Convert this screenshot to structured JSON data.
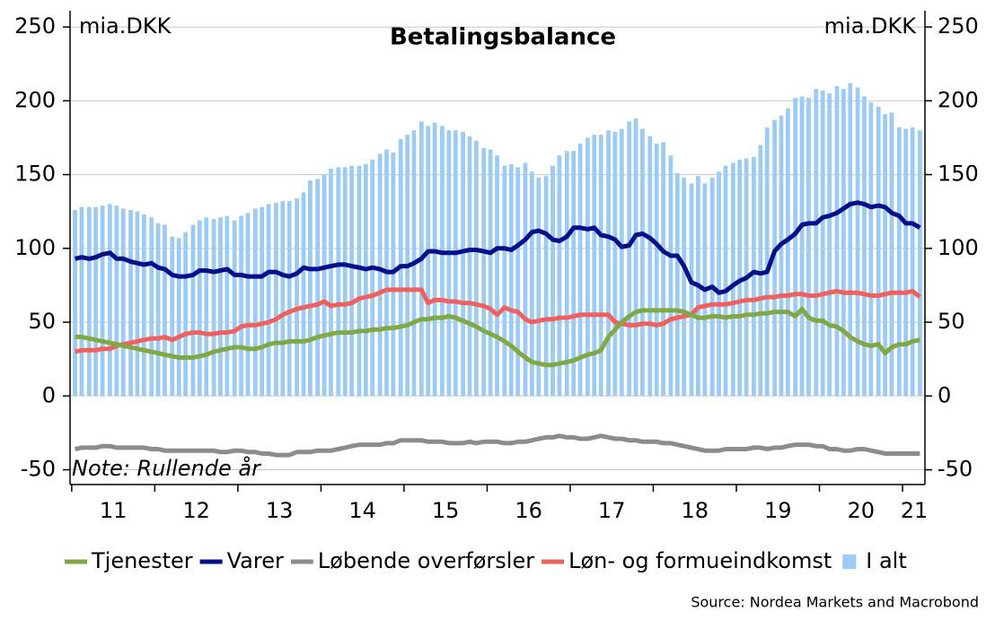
{
  "chart_data": {
    "type": "combo",
    "title": "Betalingsbalance",
    "ylabel": "mia.DKK",
    "y2label": "mia.DKK",
    "annotation": "Note:  Rullende år",
    "source": "Source: Nordea Markets and Macrobond",
    "xlim": [
      2010.98,
      2021.27
    ],
    "xticks": [
      {
        "value": 2011.5,
        "label": "11"
      },
      {
        "value": 2012.5,
        "label": "12"
      },
      {
        "value": 2013.5,
        "label": "13"
      },
      {
        "value": 2014.5,
        "label": "14"
      },
      {
        "value": 2015.5,
        "label": "15"
      },
      {
        "value": 2016.5,
        "label": "16"
      },
      {
        "value": 2017.5,
        "label": "17"
      },
      {
        "value": 2018.5,
        "label": "18"
      },
      {
        "value": 2019.5,
        "label": "19"
      },
      {
        "value": 2020.5,
        "label": "20"
      },
      {
        "value": 2021.14,
        "label": "21"
      }
    ],
    "xminorticks": [
      2011,
      2012,
      2013,
      2014,
      2015,
      2016,
      2017,
      2018,
      2019,
      2020,
      2021
    ],
    "ylim": [
      -60,
      261
    ],
    "yticks": [
      -50,
      0,
      50,
      100,
      150,
      200,
      250
    ],
    "grid": true,
    "x": [
      2011.04,
      2011.12,
      2011.21,
      2011.29,
      2011.37,
      2011.46,
      2011.54,
      2011.62,
      2011.71,
      2011.79,
      2011.87,
      2011.96,
      2012.04,
      2012.12,
      2012.21,
      2012.29,
      2012.37,
      2012.46,
      2012.54,
      2012.62,
      2012.71,
      2012.79,
      2012.87,
      2012.96,
      2013.04,
      2013.12,
      2013.21,
      2013.29,
      2013.37,
      2013.46,
      2013.54,
      2013.62,
      2013.71,
      2013.79,
      2013.87,
      2013.96,
      2014.04,
      2014.12,
      2014.21,
      2014.29,
      2014.37,
      2014.46,
      2014.54,
      2014.62,
      2014.71,
      2014.79,
      2014.87,
      2014.96,
      2015.04,
      2015.12,
      2015.21,
      2015.29,
      2015.37,
      2015.46,
      2015.54,
      2015.62,
      2015.71,
      2015.79,
      2015.87,
      2015.96,
      2016.04,
      2016.12,
      2016.21,
      2016.29,
      2016.37,
      2016.46,
      2016.54,
      2016.62,
      2016.71,
      2016.79,
      2016.87,
      2016.96,
      2017.04,
      2017.12,
      2017.21,
      2017.29,
      2017.37,
      2017.46,
      2017.54,
      2017.62,
      2017.71,
      2017.79,
      2017.87,
      2017.96,
      2018.04,
      2018.12,
      2018.21,
      2018.29,
      2018.37,
      2018.46,
      2018.54,
      2018.62,
      2018.71,
      2018.79,
      2018.87,
      2018.96,
      2019.04,
      2019.12,
      2019.21,
      2019.29,
      2019.37,
      2019.46,
      2019.54,
      2019.62,
      2019.71,
      2019.79,
      2019.87,
      2019.96,
      2020.04,
      2020.12,
      2020.21,
      2020.29,
      2020.37,
      2020.46,
      2020.54,
      2020.62,
      2020.71,
      2020.79,
      2020.87,
      2020.96,
      2021.04,
      2021.12,
      2021.21
    ],
    "series": [
      {
        "name": "Tjenester",
        "type": "line",
        "color": "#82a843",
        "values": [
          40,
          40,
          39,
          38,
          37,
          36,
          35,
          34,
          33,
          32,
          31,
          30,
          29,
          28,
          27,
          26,
          26,
          26,
          27,
          28,
          30,
          31,
          32,
          33,
          33,
          32,
          32,
          33,
          35,
          36,
          36,
          37,
          37,
          37,
          38,
          40,
          41,
          42,
          43,
          43,
          43,
          44,
          44,
          45,
          45,
          46,
          46,
          47,
          48,
          50,
          52,
          52,
          53,
          53,
          54,
          53,
          51,
          49,
          47,
          44,
          42,
          40,
          37,
          34,
          30,
          26,
          23,
          22,
          21,
          21,
          22,
          23,
          24,
          26,
          28,
          29,
          31,
          40,
          45,
          50,
          54,
          57,
          58,
          58,
          58,
          58,
          58,
          58,
          57,
          55,
          53,
          53,
          54,
          54,
          53,
          54,
          54,
          55,
          55,
          56,
          56,
          57,
          57,
          57,
          54,
          59,
          53,
          51,
          51,
          48,
          47,
          44,
          40,
          37,
          35,
          34,
          35,
          29,
          33,
          35,
          35,
          37,
          38
        ]
      },
      {
        "name": "Varer",
        "type": "line",
        "color": "#000f8a",
        "values": [
          93,
          94,
          93,
          94,
          96,
          97,
          93,
          93,
          91,
          90,
          89,
          90,
          87,
          86,
          82,
          81,
          81,
          82,
          85,
          85,
          84,
          85,
          86,
          82,
          82,
          81,
          81,
          81,
          84,
          84,
          82,
          81,
          83,
          87,
          86,
          86,
          87,
          88,
          89,
          89,
          88,
          87,
          86,
          87,
          86,
          84,
          84,
          88,
          88,
          90,
          93,
          98,
          98,
          97,
          97,
          97,
          98,
          99,
          99,
          98,
          97,
          100,
          100,
          99,
          102,
          106,
          111,
          112,
          110,
          106,
          105,
          108,
          114,
          114,
          113,
          114,
          109,
          108,
          106,
          101,
          102,
          109,
          110,
          107,
          103,
          98,
          95,
          95,
          88,
          77,
          75,
          72,
          74,
          70,
          71,
          75,
          78,
          80,
          84,
          83,
          84,
          98,
          103,
          106,
          110,
          116,
          117,
          117,
          121,
          122,
          124,
          127,
          130,
          131,
          130,
          128,
          129,
          128,
          124,
          122,
          117,
          117,
          114
        ]
      },
      {
        "name": "Løbende overførsler",
        "type": "line",
        "color": "#8c8c8c",
        "values": [
          -36,
          -35,
          -35,
          -35,
          -34,
          -34,
          -35,
          -35,
          -35,
          -35,
          -35,
          -36,
          -36,
          -37,
          -37,
          -37,
          -37,
          -37,
          -37,
          -37,
          -37,
          -38,
          -38,
          -37,
          -37,
          -38,
          -38,
          -39,
          -39,
          -40,
          -40,
          -40,
          -38,
          -38,
          -38,
          -37,
          -37,
          -37,
          -36,
          -35,
          -34,
          -33,
          -33,
          -33,
          -33,
          -32,
          -32,
          -30,
          -30,
          -30,
          -30,
          -31,
          -31,
          -31,
          -32,
          -32,
          -32,
          -31,
          -32,
          -31,
          -31,
          -31,
          -32,
          -32,
          -31,
          -31,
          -30,
          -29,
          -28,
          -28,
          -27,
          -28,
          -28,
          -29,
          -29,
          -28,
          -27,
          -28,
          -29,
          -29,
          -30,
          -30,
          -31,
          -31,
          -31,
          -32,
          -32,
          -33,
          -34,
          -35,
          -36,
          -37,
          -37,
          -37,
          -36,
          -36,
          -36,
          -36,
          -35,
          -35,
          -36,
          -35,
          -35,
          -34,
          -33,
          -33,
          -33,
          -34,
          -34,
          -36,
          -36,
          -37,
          -37,
          -36,
          -36,
          -37,
          -38,
          -39,
          -39,
          -39,
          -39,
          -39,
          -39
        ]
      },
      {
        "name": "Løn- og formueindkomst",
        "type": "line",
        "color": "#f0605f",
        "values": [
          30,
          31,
          31,
          31,
          32,
          32,
          34,
          35,
          36,
          37,
          38,
          39,
          39,
          40,
          38,
          40,
          42,
          43,
          43,
          42,
          42,
          43,
          43,
          44,
          47,
          48,
          48,
          49,
          50,
          52,
          55,
          57,
          59,
          60,
          61,
          62,
          64,
          61,
          62,
          62,
          63,
          66,
          67,
          68,
          70,
          72,
          72,
          72,
          72,
          72,
          72,
          63,
          65,
          65,
          64,
          64,
          63,
          63,
          62,
          61,
          59,
          55,
          60,
          58,
          57,
          52,
          50,
          51,
          52,
          52,
          53,
          53,
          54,
          55,
          55,
          55,
          55,
          55,
          50,
          49,
          48,
          48,
          49,
          49,
          48,
          49,
          52,
          53,
          54,
          55,
          60,
          61,
          62,
          62,
          62,
          63,
          64,
          65,
          65,
          66,
          67,
          67,
          68,
          68,
          69,
          69,
          68,
          68,
          69,
          70,
          71,
          70,
          70,
          70,
          69,
          68,
          68,
          69,
          70,
          70,
          70,
          71,
          67
        ]
      },
      {
        "name": "I alt",
        "type": "bar",
        "color": "#9ccbf3",
        "values": [
          126,
          128,
          128,
          128,
          129,
          130,
          129,
          127,
          126,
          125,
          123,
          121,
          117,
          116,
          108,
          107,
          111,
          116,
          119,
          121,
          120,
          121,
          122,
          119,
          122,
          124,
          127,
          128,
          130,
          131,
          132,
          132,
          134,
          138,
          146,
          147,
          150,
          154,
          155,
          155,
          156,
          156,
          157,
          160,
          164,
          167,
          165,
          174,
          177,
          180,
          186,
          183,
          185,
          183,
          180,
          180,
          179,
          176,
          173,
          168,
          167,
          163,
          156,
          157,
          155,
          158,
          152,
          148,
          149,
          156,
          163,
          166,
          166,
          171,
          175,
          177,
          177,
          180,
          179,
          181,
          186,
          188,
          181,
          176,
          171,
          172,
          163,
          151,
          148,
          144,
          149,
          144,
          148,
          152,
          156,
          158,
          160,
          161,
          162,
          170,
          182,
          187,
          190,
          195,
          202,
          203,
          202,
          208,
          207,
          205,
          210,
          208,
          212,
          209,
          203,
          199,
          196,
          191,
          192,
          182,
          181,
          182,
          180
        ]
      }
    ]
  }
}
